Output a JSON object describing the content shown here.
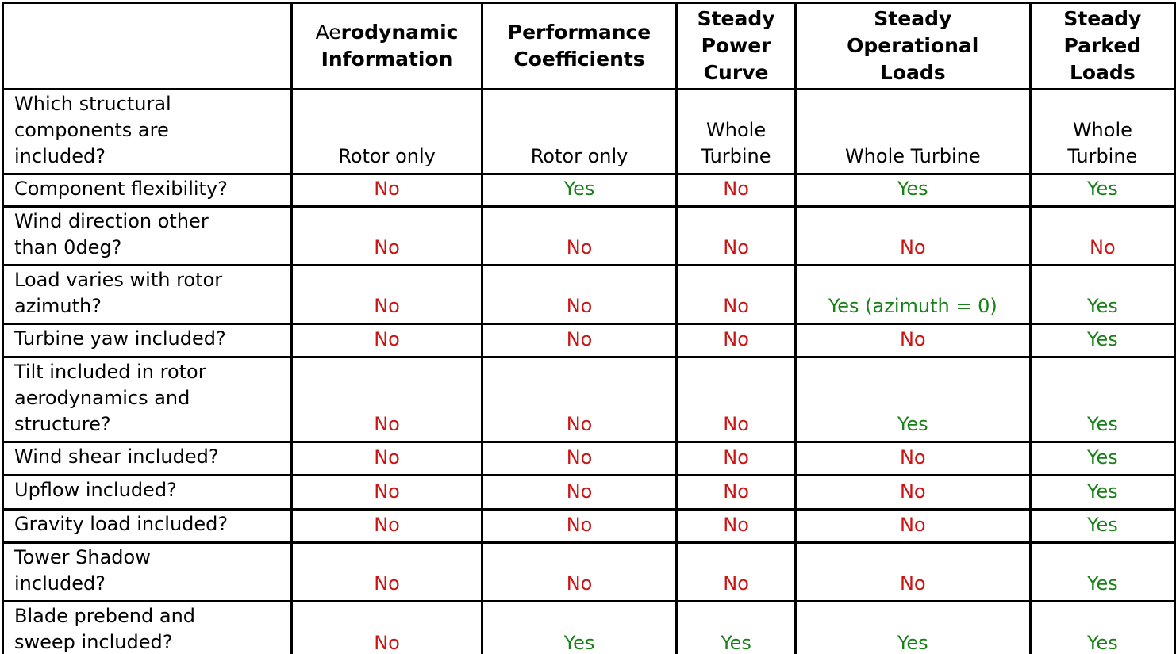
{
  "colors": {
    "yes_green": "#178017",
    "no_red": "#cc1414",
    "text_black": "#000000",
    "border_black": "#000000",
    "background_white": "#ffffff"
  },
  "table": {
    "corner_label": "",
    "columns": [
      {
        "prefix": "Ae",
        "label": "rodynamic\nInformation"
      },
      {
        "prefix": "",
        "label": "Performance\nCoefficients"
      },
      {
        "prefix": "",
        "label": "Steady\nPower\nCurve"
      },
      {
        "prefix": "",
        "label": "Steady\nOperational\nLoads"
      },
      {
        "prefix": "",
        "label": "Steady\nParked\nLoads"
      }
    ],
    "rows": [
      {
        "question": "Which structural\ncomponents are\nincluded?",
        "values": [
          {
            "text": "Rotor only",
            "type": "plain"
          },
          {
            "text": "Rotor only",
            "type": "plain"
          },
          {
            "text": "Whole\nTurbine",
            "type": "plain"
          },
          {
            "text": "Whole Turbine",
            "type": "plain"
          },
          {
            "text": "Whole\nTurbine",
            "type": "plain"
          }
        ]
      },
      {
        "question": "Component flexibility?",
        "values": [
          {
            "text": "No",
            "type": "no"
          },
          {
            "text": "Yes",
            "type": "yes"
          },
          {
            "text": "No",
            "type": "no"
          },
          {
            "text": "Yes",
            "type": "yes"
          },
          {
            "text": "Yes",
            "type": "yes"
          }
        ]
      },
      {
        "question": "Wind direction other\nthan 0deg?",
        "values": [
          {
            "text": "No",
            "type": "no"
          },
          {
            "text": "No",
            "type": "no"
          },
          {
            "text": "No",
            "type": "no"
          },
          {
            "text": "No",
            "type": "no"
          },
          {
            "text": "No",
            "type": "no"
          }
        ]
      },
      {
        "question": "Load varies with rotor\nazimuth?",
        "values": [
          {
            "text": "No",
            "type": "no"
          },
          {
            "text": "No",
            "type": "no"
          },
          {
            "text": "No",
            "type": "no"
          },
          {
            "text": "Yes (azimuth = 0)",
            "type": "yes"
          },
          {
            "text": "Yes",
            "type": "yes"
          }
        ]
      },
      {
        "question": "Turbine yaw included?",
        "values": [
          {
            "text": "No",
            "type": "no"
          },
          {
            "text": "No",
            "type": "no"
          },
          {
            "text": "No",
            "type": "no"
          },
          {
            "text": "No",
            "type": "no"
          },
          {
            "text": "Yes",
            "type": "yes"
          }
        ]
      },
      {
        "question": "Tilt included in rotor\naerodynamics and\nstructure?",
        "values": [
          {
            "text": "No",
            "type": "no"
          },
          {
            "text": "No",
            "type": "no"
          },
          {
            "text": "No",
            "type": "no"
          },
          {
            "text": "Yes",
            "type": "yes"
          },
          {
            "text": "Yes",
            "type": "yes"
          }
        ]
      },
      {
        "question": "Wind shear included?",
        "values": [
          {
            "text": "No",
            "type": "no"
          },
          {
            "text": "No",
            "type": "no"
          },
          {
            "text": "No",
            "type": "no"
          },
          {
            "text": "No",
            "type": "no"
          },
          {
            "text": "Yes",
            "type": "yes"
          }
        ]
      },
      {
        "question": "Upflow included?",
        "values": [
          {
            "text": "No",
            "type": "no"
          },
          {
            "text": "No",
            "type": "no"
          },
          {
            "text": "No",
            "type": "no"
          },
          {
            "text": "No",
            "type": "no"
          },
          {
            "text": "Yes",
            "type": "yes"
          }
        ]
      },
      {
        "question": "Gravity load included?",
        "values": [
          {
            "text": "No",
            "type": "no"
          },
          {
            "text": "No",
            "type": "no"
          },
          {
            "text": "No",
            "type": "no"
          },
          {
            "text": "No",
            "type": "no"
          },
          {
            "text": "Yes",
            "type": "yes"
          }
        ]
      },
      {
        "question": "Tower Shadow\nincluded?",
        "values": [
          {
            "text": "No",
            "type": "no"
          },
          {
            "text": "No",
            "type": "no"
          },
          {
            "text": "No",
            "type": "no"
          },
          {
            "text": "No",
            "type": "no"
          },
          {
            "text": "Yes",
            "type": "yes"
          }
        ]
      },
      {
        "question": "Blade prebend and\nsweep included?",
        "values": [
          {
            "text": "No",
            "type": "no"
          },
          {
            "text": "Yes",
            "type": "yes"
          },
          {
            "text": "Yes",
            "type": "yes"
          },
          {
            "text": "Yes",
            "type": "yes"
          },
          {
            "text": "Yes",
            "type": "yes"
          }
        ]
      }
    ]
  }
}
